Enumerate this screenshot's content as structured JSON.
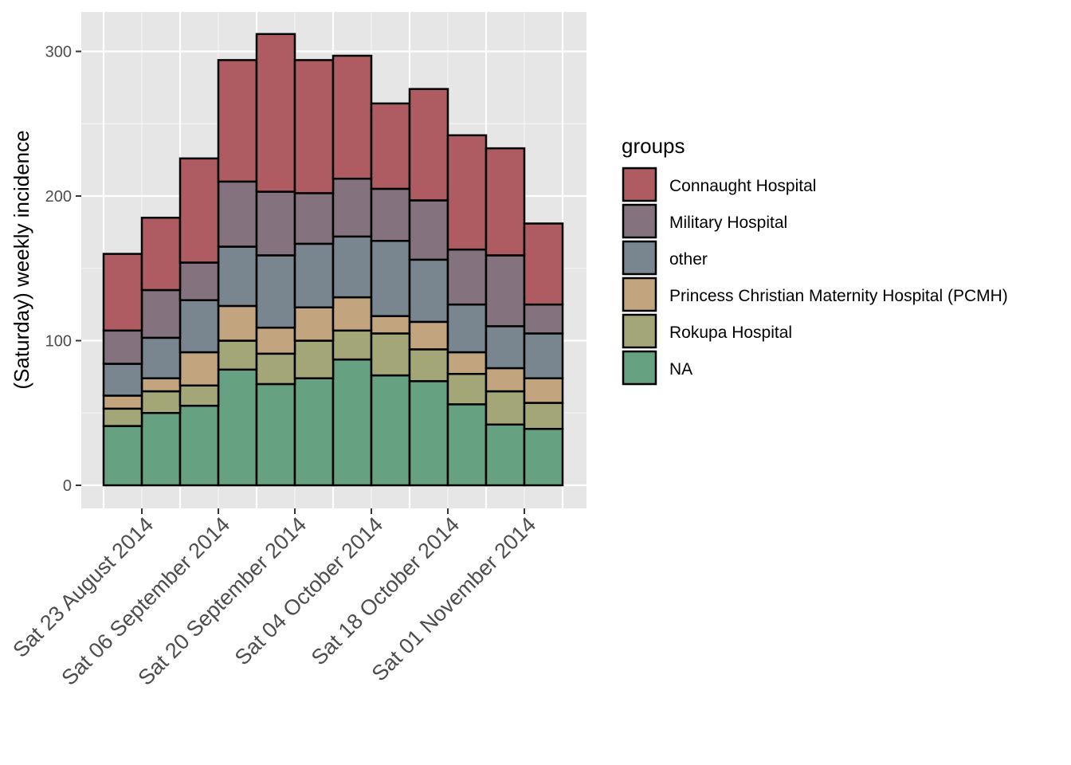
{
  "chart_data": {
    "type": "bar",
    "stacked": true,
    "ylabel": "(Saturday) weekly incidence",
    "xlabel": "",
    "ylim": [
      0,
      328
    ],
    "y_ticks": [
      0,
      100,
      200,
      300
    ],
    "grid": true,
    "categories": [
      "2014-08-16",
      "2014-08-23",
      "2014-08-30",
      "2014-09-06",
      "2014-09-13",
      "2014-09-20",
      "2014-09-27",
      "2014-10-04",
      "2014-10-11",
      "2014-10-18",
      "2014-10-25",
      "2014-11-01"
    ],
    "x_tick_labels": [
      {
        "label": "Sat 23 August 2014",
        "date": "2014-08-23"
      },
      {
        "label": "Sat 06 September 2014",
        "date": "2014-09-06"
      },
      {
        "label": "Sat 20 September 2014",
        "date": "2014-09-20"
      },
      {
        "label": "Sat 04 October 2014",
        "date": "2014-10-04"
      },
      {
        "label": "Sat 18 October 2014",
        "date": "2014-10-18"
      },
      {
        "label": "Sat 01 November 2014",
        "date": "2014-11-01"
      }
    ],
    "legend": {
      "title": "groups",
      "position": "right"
    },
    "series": [
      {
        "name": "NA",
        "color": "#66a182",
        "values": [
          41,
          50,
          55,
          80,
          70,
          74,
          87,
          76,
          72,
          56,
          42,
          39
        ]
      },
      {
        "name": "Rokupa Hospital",
        "color": "#a3a777",
        "values": [
          12,
          15,
          14,
          20,
          21,
          26,
          20,
          29,
          22,
          21,
          23,
          18
        ]
      },
      {
        "name": "Princess Christian Maternity Hospital (PCMH)",
        "color": "#c2a57f",
        "values": [
          9,
          9,
          23,
          24,
          18,
          23,
          23,
          12,
          19,
          15,
          16,
          17
        ]
      },
      {
        "name": "other",
        "color": "#79868f",
        "values": [
          22,
          28,
          36,
          41,
          50,
          44,
          42,
          52,
          43,
          33,
          29,
          31
        ]
      },
      {
        "name": "Military Hospital",
        "color": "#85727f",
        "values": [
          23,
          33,
          26,
          45,
          44,
          35,
          40,
          36,
          41,
          38,
          49,
          20
        ]
      },
      {
        "name": "Connaught Hospital",
        "color": "#ae5c61",
        "values": [
          53,
          50,
          72,
          84,
          109,
          92,
          85,
          59,
          77,
          79,
          74,
          56
        ]
      }
    ]
  }
}
